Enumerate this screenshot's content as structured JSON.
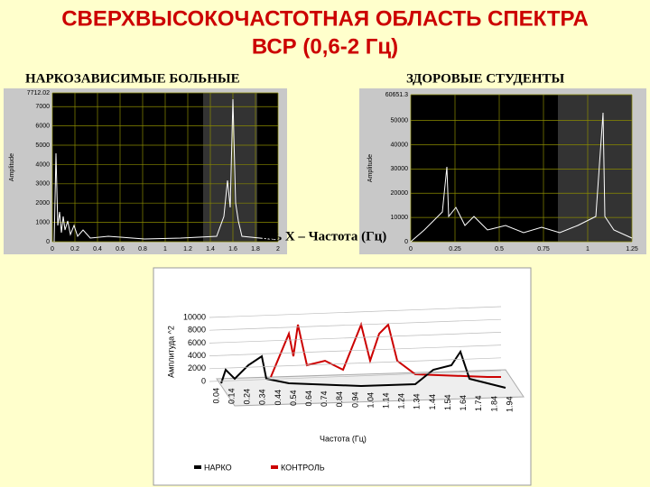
{
  "title": {
    "line1": "СВЕРХВЫСОКОЧАСТОТНАЯ ОБЛАСТЬ СПЕКТРА",
    "line2": "ВСР (0,6-2 Гц)"
  },
  "left_panel": {
    "label": "НАРКОЗАВИСИМЫЕ БОЛЬНЫЕ",
    "y_axis_label": "Amplitude",
    "ylim": [
      0,
      7712.02
    ],
    "yticks": [
      0,
      1000,
      2000,
      3000,
      4000,
      5000,
      6000,
      7000,
      7712.02
    ],
    "xlim": [
      0,
      2
    ],
    "xticks": [
      0,
      0.2,
      0.4,
      0.6,
      0.8,
      1,
      1.2,
      1.4,
      1.6,
      1.8,
      2
    ]
  },
  "right_panel": {
    "label": "ЗДОРОВЫЕ СТУДЕНТЫ",
    "y_axis_label": "Amplitude",
    "ylim": [
      0,
      60651.3
    ],
    "yticks": [
      0,
      10000,
      20000,
      30000,
      40000,
      50000,
      60651.3
    ],
    "xlim": [
      0,
      1.25
    ],
    "xticks": [
      0,
      0.25,
      0.5,
      0.75,
      1,
      1.25
    ]
  },
  "x_axis_note": "ось Х – Частота (Гц)",
  "bottom_chart": {
    "y_axis_label": "Амплитуда ^2",
    "ylim": [
      0,
      10000
    ],
    "yticks": [
      0,
      2000,
      4000,
      6000,
      8000,
      10000
    ],
    "categories": [
      "0.04",
      "0.14",
      "0.24",
      "0.34",
      "0.44",
      "0.54",
      "0.64",
      "0.74",
      "0.84",
      "0.94",
      "1.04",
      "1.14",
      "1.24",
      "1.34",
      "1.44",
      "1.54",
      "1.64",
      "1.74",
      "1.84",
      "1.94"
    ],
    "x_axis_label": "Частота (Гц)",
    "legend": [
      {
        "name": "НАРКО",
        "color": "#000000"
      },
      {
        "name": "КОНТРОЛЬ",
        "color": "#cc0000"
      }
    ]
  }
}
